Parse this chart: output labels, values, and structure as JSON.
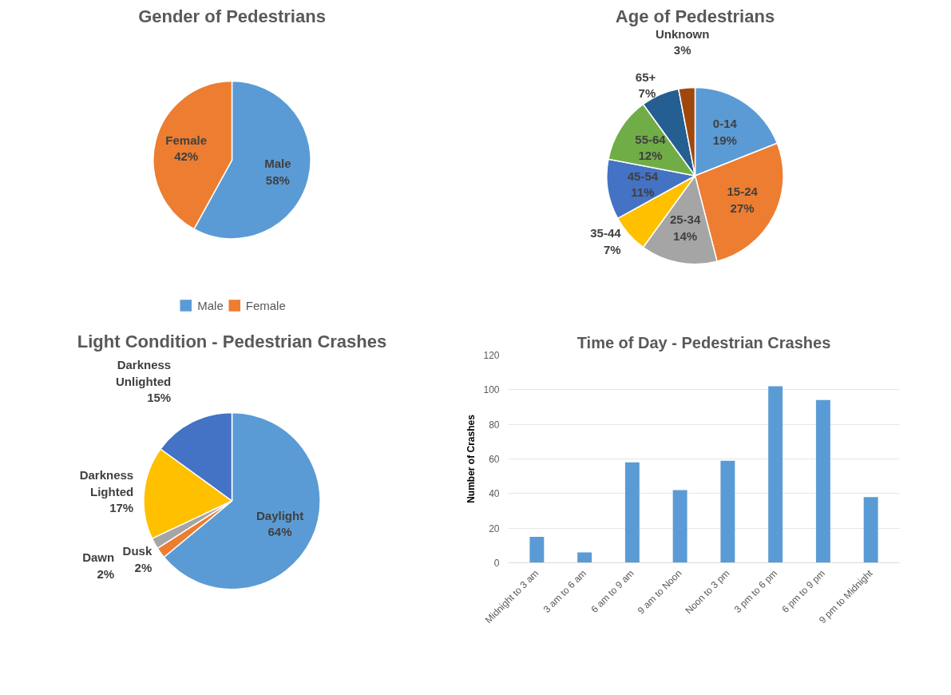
{
  "chart_data": [
    {
      "type": "pie",
      "title": "Gender of Pedestrians",
      "categories": [
        "Male",
        "Female"
      ],
      "values": [
        58,
        42
      ],
      "colors": [
        "#5b9bd5",
        "#ed7d31"
      ],
      "value_labels": [
        "58%",
        "42%"
      ],
      "legend": "bottom"
    },
    {
      "type": "pie",
      "title": "Age of Pedestrians",
      "categories": [
        "0-14",
        "15-24",
        "25-34",
        "35-44",
        "45-54",
        "55-64",
        "65+",
        "Unknown"
      ],
      "values": [
        19,
        27,
        14,
        7,
        11,
        12,
        7,
        3
      ],
      "colors": [
        "#5b9bd5",
        "#ed7d31",
        "#a5a5a5",
        "#ffc000",
        "#4472c4",
        "#70ad47",
        "#255e91",
        "#9e480e"
      ],
      "value_labels": [
        "19%",
        "27%",
        "14%",
        "7%",
        "11%",
        "12%",
        "7%",
        "3%"
      ]
    },
    {
      "type": "pie",
      "title": "Light Condition - Pedestrian Crashes",
      "categories": [
        "Daylight",
        "Dusk",
        "Dawn",
        "Darkness Lighted",
        "Darkness Unlighted"
      ],
      "values": [
        64,
        2,
        2,
        17,
        15
      ],
      "colors": [
        "#5b9bd5",
        "#ed7d31",
        "#a5a5a5",
        "#ffc000",
        "#4472c4"
      ],
      "value_labels": [
        "64%",
        "2%",
        "2%",
        "17%",
        "15%"
      ]
    },
    {
      "type": "bar",
      "title": "Time of Day - Pedestrian Crashes",
      "ylabel": "Number of Crashes",
      "categories": [
        "Midnight to 3 am",
        "3 am to 6 am",
        "6 am to 9 am",
        "9 am to Noon",
        "Noon to 3 pm",
        "3 pm to 6 pm",
        "6 pm to 9 pm",
        "9 pm to Midnight"
      ],
      "values": [
        15,
        6,
        58,
        42,
        59,
        102,
        94,
        38
      ],
      "color": "#5b9bd5",
      "ylim": [
        0,
        120
      ],
      "yticks": [
        0,
        20,
        40,
        60,
        80,
        100,
        120
      ],
      "grid": "y"
    }
  ]
}
